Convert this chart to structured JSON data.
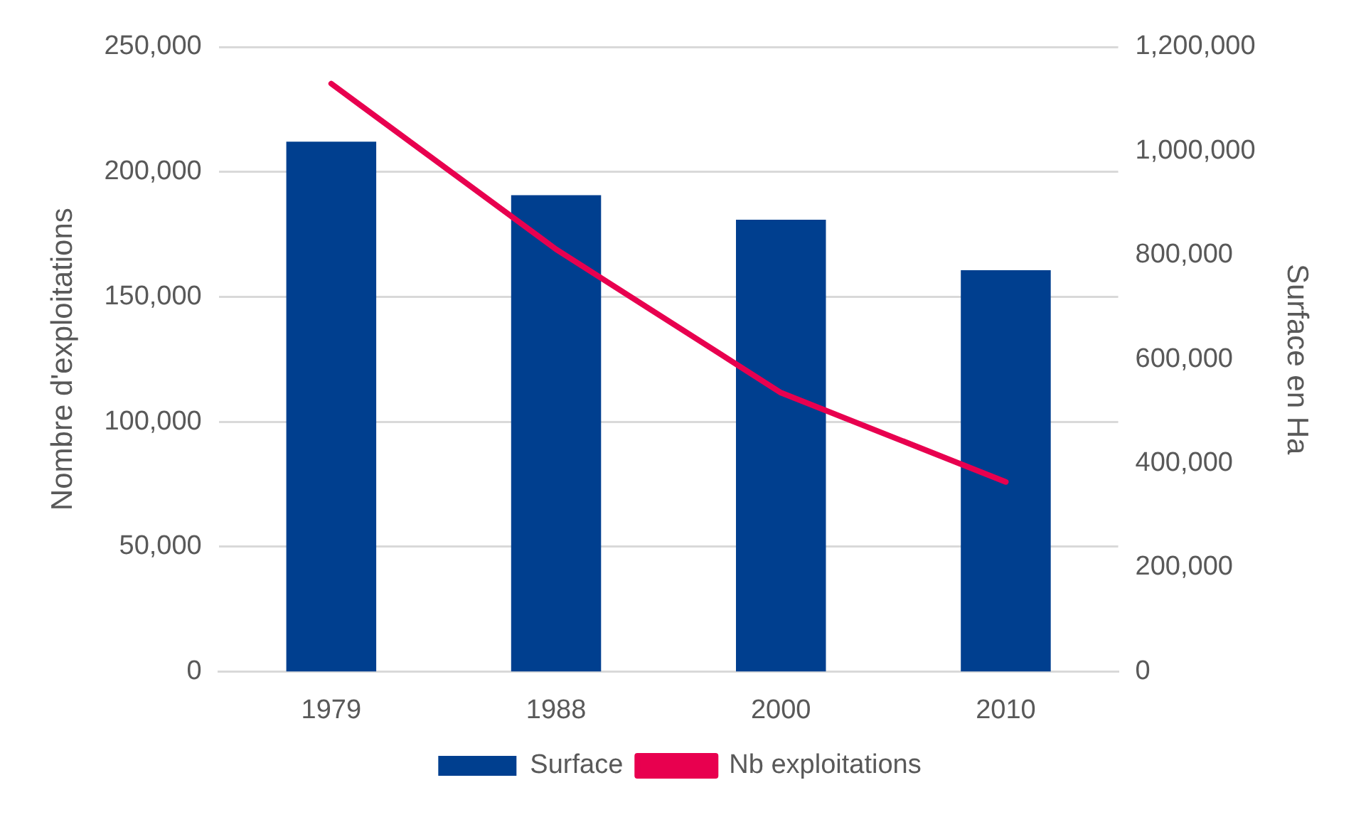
{
  "chart_data": {
    "type": "bar",
    "categories": [
      "1979",
      "1988",
      "2000",
      "2010"
    ],
    "series": [
      {
        "name": "Surface",
        "color": "#003f8f",
        "axis": "y2",
        "values": [
          1018000,
          915000,
          868000,
          771000
        ]
      },
      {
        "name": "Nb exploitations",
        "type": "line",
        "color": "#e8004f",
        "values": [
          235300,
          169000,
          111600,
          75900
        ]
      }
    ],
    "ylabel": "Nombre d'exploitations",
    "y2label": "Surface en Ha",
    "ylim": [
      0,
      250000
    ],
    "yticks": [
      {
        "value": 0,
        "label": "0"
      },
      {
        "value": 50000,
        "label": "50,000"
      },
      {
        "value": 100000,
        "label": "100,000"
      },
      {
        "value": 150000,
        "label": "150,000"
      },
      {
        "value": 200000,
        "label": "200,000"
      },
      {
        "value": 250000,
        "label": "250,000"
      }
    ],
    "y2lim": [
      0,
      1200000
    ],
    "y2ticks": [
      {
        "value": 0,
        "label": "0"
      },
      {
        "value": 200000,
        "label": "200,000"
      },
      {
        "value": 400000,
        "label": "400,000"
      },
      {
        "value": 600000,
        "label": "600,000"
      },
      {
        "value": 800000,
        "label": "800,000"
      },
      {
        "value": 1000000,
        "label": "1,000,000"
      },
      {
        "value": 1200000,
        "label": "1,200,000"
      }
    ],
    "grid": "y",
    "legend": "bottom",
    "marker": "none"
  }
}
